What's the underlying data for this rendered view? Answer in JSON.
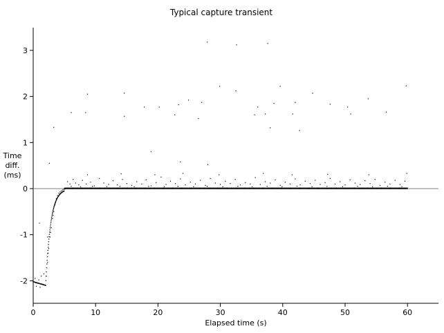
{
  "chart_data": {
    "type": "scatter",
    "title": "Typical capture transient",
    "xlabel": "Elapsed time (s)",
    "ylabel": [
      "Time",
      "diff.",
      "(ms)"
    ],
    "xlim": [
      0,
      65
    ],
    "ylim": [
      -2.5,
      3.5
    ],
    "xticks": [
      "0",
      "10",
      "20",
      "30",
      "40",
      "50",
      "60"
    ],
    "yticks": [
      "-2",
      "-1",
      "0",
      "1",
      "2",
      "3"
    ],
    "xtick_values": [
      0,
      10,
      20,
      30,
      40,
      50,
      60
    ],
    "ytick_values": [
      -2,
      -1,
      0,
      1,
      2,
      3
    ],
    "reference_line_y": 0,
    "grid": false,
    "legend": "none",
    "color_points": "#000000",
    "color_reference_line": "#7f7f7f",
    "series": [
      {
        "values_description_none": "",
        "points": [
          [
            0.0,
            -2.02
          ],
          [
            0.2,
            -2.03
          ],
          [
            0.4,
            -2.04
          ],
          [
            0.6,
            -2.05
          ],
          [
            0.8,
            -2.05
          ],
          [
            1.0,
            -2.06
          ],
          [
            1.2,
            -2.07
          ],
          [
            1.4,
            -2.07
          ],
          [
            1.6,
            -2.08
          ],
          [
            1.8,
            -2.09
          ],
          [
            2.0,
            -2.1
          ],
          [
            0.3,
            -1.95
          ],
          [
            0.9,
            -1.98
          ],
          [
            1.3,
            -1.9
          ],
          [
            1.7,
            -1.85
          ],
          [
            0.5,
            -2.12
          ],
          [
            1.1,
            -2.14
          ],
          [
            2.1,
            -1.9
          ],
          [
            2.3,
            -1.6
          ],
          [
            2.5,
            -1.3
          ],
          [
            2.7,
            -1.05
          ],
          [
            2.9,
            -0.85
          ],
          [
            3.1,
            -0.65
          ],
          [
            3.3,
            -0.5
          ],
          [
            3.5,
            -0.35
          ],
          [
            3.7,
            -0.22
          ],
          [
            3.9,
            -0.15
          ],
          [
            4.1,
            -0.1
          ],
          [
            4.3,
            -0.07
          ],
          [
            4.5,
            -0.05
          ],
          [
            4.7,
            -0.03
          ],
          [
            4.9,
            -0.02
          ],
          [
            5.1,
            -0.01
          ],
          [
            2.4,
            -1.4
          ],
          [
            2.8,
            -0.95
          ],
          [
            3.2,
            -0.58
          ],
          [
            3.6,
            -0.3
          ],
          [
            1.0,
            -0.75
          ],
          [
            2.3,
            -1.05
          ],
          [
            2.6,
            0.55
          ],
          [
            3.3,
            1.33
          ],
          [
            5.5,
            0.15
          ],
          [
            5.9,
            0.1
          ],
          [
            6.4,
            0.2
          ],
          [
            6.8,
            0.12
          ],
          [
            7.3,
            0.08
          ],
          [
            7.9,
            0.18
          ],
          [
            8.5,
            0.1
          ],
          [
            9.2,
            0.14
          ],
          [
            9.8,
            0.06
          ],
          [
            10.6,
            0.22
          ],
          [
            11.3,
            0.12
          ],
          [
            12.1,
            0.09
          ],
          [
            12.8,
            0.17
          ],
          [
            13.5,
            0.08
          ],
          [
            14.3,
            0.2
          ],
          [
            15.0,
            0.11
          ],
          [
            15.8,
            0.07
          ],
          [
            16.6,
            0.15
          ],
          [
            17.4,
            0.1
          ],
          [
            18.1,
            0.19
          ],
          [
            18.9,
            0.06
          ],
          [
            19.7,
            0.13
          ],
          [
            20.5,
            0.25
          ],
          [
            21.3,
            0.09
          ],
          [
            22.0,
            0.16
          ],
          [
            22.8,
            0.11
          ],
          [
            23.6,
            0.21
          ],
          [
            24.4,
            0.08
          ],
          [
            25.2,
            0.14
          ],
          [
            26.0,
            0.1
          ],
          [
            26.8,
            0.18
          ],
          [
            27.6,
            0.07
          ],
          [
            28.4,
            0.22
          ],
          [
            29.2,
            0.12
          ],
          [
            30.0,
            0.09
          ],
          [
            30.8,
            0.16
          ],
          [
            31.6,
            0.11
          ],
          [
            32.4,
            0.2
          ],
          [
            33.2,
            0.08
          ],
          [
            34.0,
            0.13
          ],
          [
            34.8,
            0.1
          ],
          [
            35.6,
            0.24
          ],
          [
            36.4,
            0.09
          ],
          [
            37.2,
            0.15
          ],
          [
            38.0,
            0.12
          ],
          [
            38.8,
            0.19
          ],
          [
            39.6,
            0.07
          ],
          [
            40.4,
            0.14
          ],
          [
            41.2,
            0.1
          ],
          [
            42.0,
            0.21
          ],
          [
            42.8,
            0.08
          ],
          [
            43.6,
            0.16
          ],
          [
            44.4,
            0.11
          ],
          [
            45.2,
            0.18
          ],
          [
            46.0,
            0.09
          ],
          [
            46.8,
            0.13
          ],
          [
            47.6,
            0.22
          ],
          [
            48.4,
            0.1
          ],
          [
            49.2,
            0.15
          ],
          [
            50.0,
            0.08
          ],
          [
            50.8,
            0.19
          ],
          [
            51.6,
            0.12
          ],
          [
            52.4,
            0.09
          ],
          [
            53.2,
            0.17
          ],
          [
            54.0,
            0.11
          ],
          [
            54.8,
            0.2
          ],
          [
            55.6,
            0.07
          ],
          [
            56.4,
            0.14
          ],
          [
            57.2,
            0.1
          ],
          [
            58.0,
            0.18
          ],
          [
            58.8,
            0.09
          ],
          [
            59.6,
            0.16
          ],
          [
            6.1,
            0.05
          ],
          [
            7.6,
            0.04
          ],
          [
            9.5,
            0.05
          ],
          [
            11.8,
            0.04
          ],
          [
            13.9,
            0.05
          ],
          [
            16.2,
            0.04
          ],
          [
            18.5,
            0.05
          ],
          [
            21.0,
            0.04
          ],
          [
            23.2,
            0.05
          ],
          [
            25.7,
            0.04
          ],
          [
            27.9,
            0.05
          ],
          [
            30.4,
            0.04
          ],
          [
            32.8,
            0.05
          ],
          [
            35.1,
            0.04
          ],
          [
            37.5,
            0.05
          ],
          [
            39.9,
            0.04
          ],
          [
            42.3,
            0.05
          ],
          [
            44.7,
            0.04
          ],
          [
            47.1,
            0.05
          ],
          [
            49.6,
            0.04
          ],
          [
            52.0,
            0.05
          ],
          [
            54.4,
            0.04
          ],
          [
            56.8,
            0.05
          ],
          [
            59.1,
            0.04
          ],
          [
            8.7,
            0.3
          ],
          [
            14.1,
            0.32
          ],
          [
            19.5,
            0.3
          ],
          [
            24.0,
            0.33
          ],
          [
            29.8,
            0.3
          ],
          [
            36.9,
            0.33
          ],
          [
            41.5,
            0.3
          ],
          [
            47.2,
            0.31
          ],
          [
            53.8,
            0.3
          ],
          [
            59.9,
            0.33
          ],
          [
            6.1,
            1.65
          ],
          [
            8.4,
            1.65
          ],
          [
            8.7,
            2.05
          ],
          [
            14.6,
            2.07
          ],
          [
            14.6,
            1.57
          ],
          [
            17.8,
            1.77
          ],
          [
            18.9,
            0.8
          ],
          [
            20.2,
            1.77
          ],
          [
            22.7,
            1.6
          ],
          [
            23.3,
            1.82
          ],
          [
            23.6,
            0.58
          ],
          [
            24.9,
            1.92
          ],
          [
            26.5,
            1.52
          ],
          [
            27.0,
            1.87
          ],
          [
            27.9,
            3.18
          ],
          [
            28.0,
            0.52
          ],
          [
            29.9,
            2.22
          ],
          [
            32.5,
            2.12
          ],
          [
            32.6,
            3.12
          ],
          [
            35.5,
            1.6
          ],
          [
            36.0,
            1.77
          ],
          [
            37.2,
            1.62
          ],
          [
            37.6,
            3.15
          ],
          [
            38.0,
            1.32
          ],
          [
            38.6,
            1.85
          ],
          [
            39.6,
            2.22
          ],
          [
            41.6,
            1.62
          ],
          [
            42.0,
            1.87
          ],
          [
            42.7,
            1.26
          ],
          [
            44.8,
            2.07
          ],
          [
            47.6,
            1.83
          ],
          [
            50.4,
            1.77
          ],
          [
            50.9,
            1.62
          ],
          [
            53.7,
            1.95
          ],
          [
            56.6,
            1.66
          ],
          [
            59.8,
            2.23
          ]
        ]
      }
    ]
  }
}
